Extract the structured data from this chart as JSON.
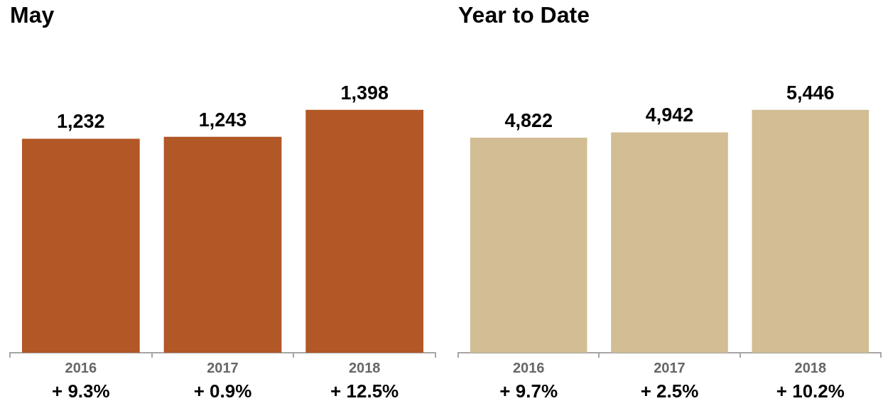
{
  "chart_data": [
    {
      "type": "bar",
      "title": "May",
      "categories": [
        "2016",
        "2017",
        "2018"
      ],
      "values": [
        1232,
        1243,
        1398
      ],
      "color": "#b25726",
      "value_labels": [
        "1,232",
        "1,243",
        "1,398"
      ],
      "tick_labels": "x",
      "annotations": [
        "+ 9.3%",
        "+ 0.9%",
        "+ 12.5%"
      ]
    },
    {
      "type": "bar",
      "title": "Year to Date",
      "categories": [
        "2016",
        "2017",
        "2018"
      ],
      "values": [
        4822,
        4942,
        5446
      ],
      "color": "#d2bd94",
      "value_labels": [
        "4,822",
        "4,942",
        "5,446"
      ],
      "tick_labels": "x",
      "annotations": [
        "+ 9.7%",
        "+ 2.5%",
        "+ 10.2%"
      ]
    }
  ]
}
